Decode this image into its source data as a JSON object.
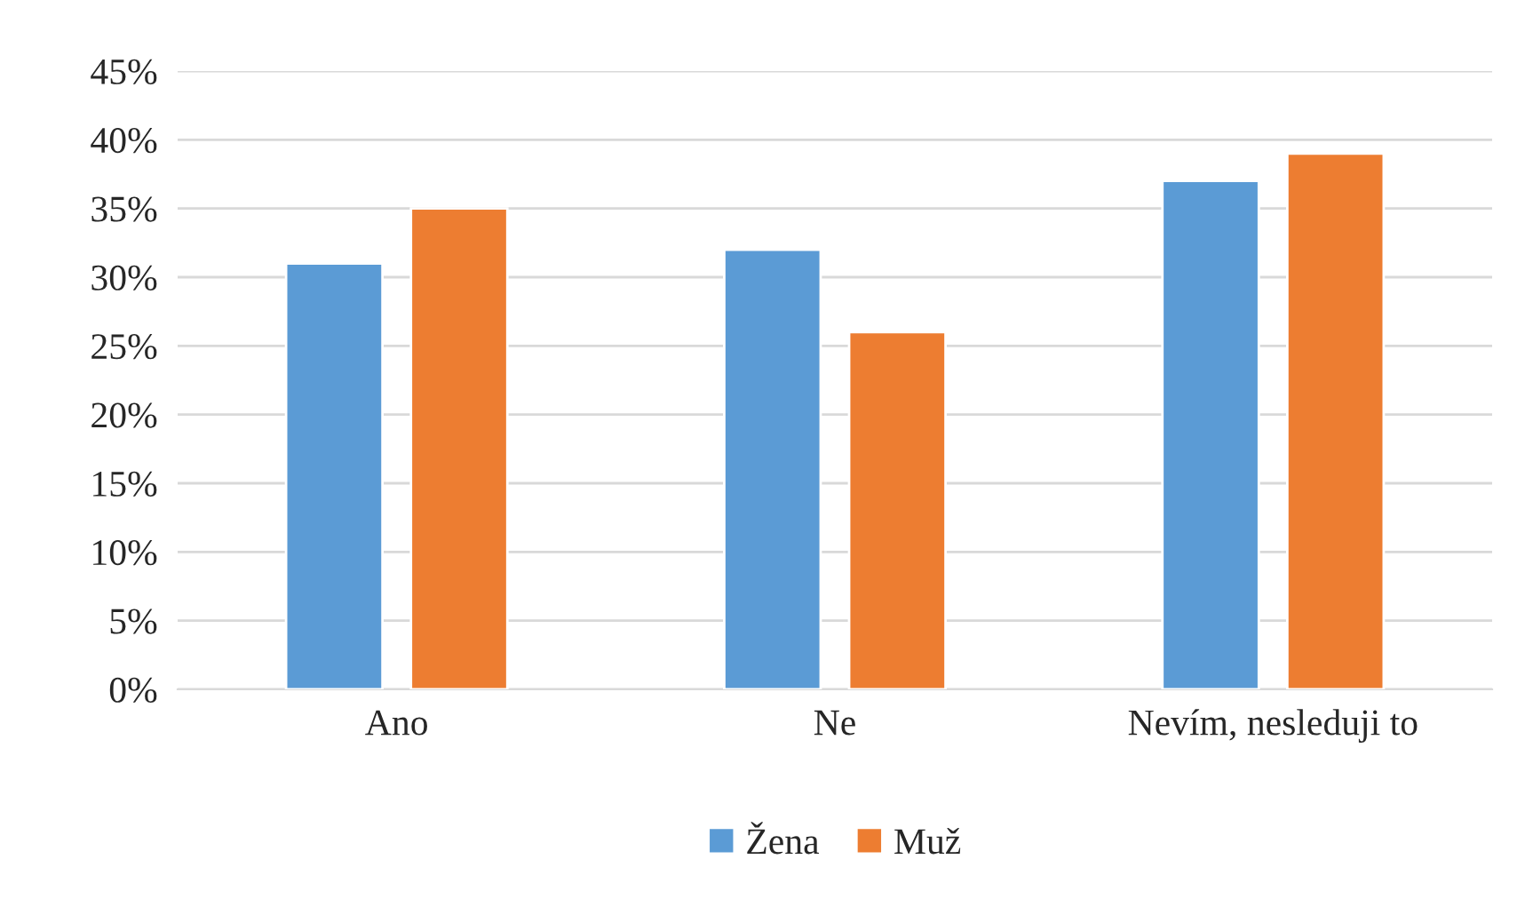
{
  "chart_data": {
    "type": "bar",
    "categories": [
      "Ano",
      "Ne",
      "Nevím, nesleduji to"
    ],
    "series": [
      {
        "name": "Žena",
        "color": "#5b9bd5",
        "values": [
          31,
          32,
          37
        ]
      },
      {
        "name": "Muž",
        "color": "#ed7d31",
        "values": [
          35,
          26,
          39
        ]
      }
    ],
    "ylim": [
      0,
      45
    ],
    "yticks": [
      {
        "value": 0,
        "label": "0%"
      },
      {
        "value": 5,
        "label": "5%"
      },
      {
        "value": 10,
        "label": "10%"
      },
      {
        "value": 15,
        "label": "15%"
      },
      {
        "value": 20,
        "label": "20%"
      },
      {
        "value": 25,
        "label": "25%"
      },
      {
        "value": 30,
        "label": "30%"
      },
      {
        "value": 35,
        "label": "35%"
      },
      {
        "value": 40,
        "label": "40%"
      },
      {
        "value": 45,
        "label": "45%"
      }
    ],
    "grid": "y",
    "legend": "bottom"
  }
}
